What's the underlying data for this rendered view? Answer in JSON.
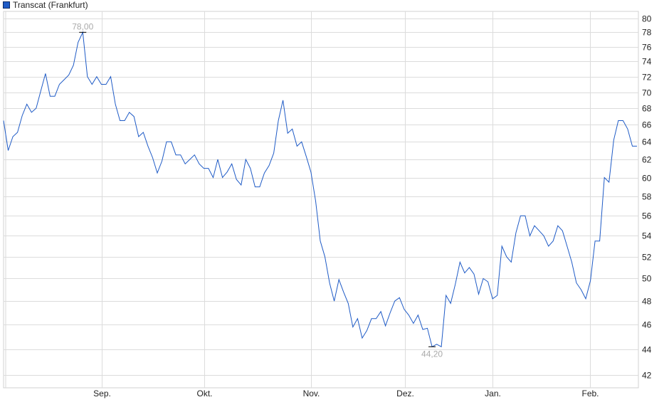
{
  "chart_data": {
    "type": "line",
    "title": "",
    "legend": {
      "position": "top-left",
      "entries": [
        "Transcat (Frankfurt)"
      ]
    },
    "series": [
      {
        "name": "Transcat (Frankfurt)",
        "color": "#1f5bc6",
        "values": [
          66.5,
          63,
          64.6,
          65.1,
          67.1,
          68.5,
          67.5,
          68,
          70.2,
          72.4,
          69.5,
          69.5,
          71,
          71.6,
          72.2,
          73.5,
          76.6,
          78,
          72,
          71,
          72,
          71,
          71,
          72,
          68.5,
          66.5,
          66.5,
          67.5,
          67,
          64.6,
          65.1,
          63.5,
          62.2,
          60.5,
          61.8,
          64,
          64,
          62.5,
          62.5,
          61.5,
          62,
          62.5,
          61.5,
          61,
          61,
          60,
          62,
          60,
          60.6,
          61.5,
          59.8,
          59.2,
          62,
          61,
          59,
          59,
          60.5,
          61.3,
          62.7,
          66.5,
          69,
          65,
          65.5,
          63.5,
          64,
          62.3,
          60.6,
          57.5,
          53.5,
          52,
          49.6,
          48,
          49.9,
          48.8,
          47.8,
          45.8,
          46.5,
          44.9,
          45.5,
          46.5,
          46.5,
          47.1,
          45.9,
          47,
          48,
          48.3,
          47.3,
          46.8,
          46.1,
          46.8,
          45.6,
          45.7,
          44.2,
          44.4,
          44.2,
          48.5,
          47.8,
          49.5,
          51.5,
          50.5,
          51,
          50.4,
          48.6,
          50,
          49.7,
          48.2,
          48.5,
          53,
          52,
          51.5,
          54.3,
          56,
          56,
          54,
          55,
          54.5,
          54,
          53,
          53.5,
          55,
          54.5,
          53,
          51.5,
          49.6,
          49,
          48.2,
          49.8,
          53.5,
          53.5,
          60,
          59.5,
          64.2,
          66.5,
          66.5,
          65.5,
          63.5,
          63.5
        ]
      }
    ],
    "x_tick_labels": [
      "Sep.",
      "Okt.",
      "Nov.",
      "Dez.",
      "Jan.",
      "Feb."
    ],
    "y_tick_labels": [
      "42",
      "44",
      "46",
      "48",
      "50",
      "52",
      "54",
      "56",
      "58",
      "60",
      "62",
      "64",
      "66",
      "68",
      "70",
      "72",
      "74",
      "76",
      "78",
      "80"
    ],
    "y_ticks": [
      42,
      44,
      46,
      48,
      50,
      52,
      54,
      56,
      58,
      60,
      62,
      64,
      66,
      68,
      70,
      72,
      74,
      76,
      78,
      80
    ],
    "ylim": [
      41,
      81
    ],
    "yscale": "log",
    "y_axis_side": "right",
    "grid": true,
    "annotations": {
      "max_label": "78,00",
      "min_label": "44,20"
    }
  }
}
